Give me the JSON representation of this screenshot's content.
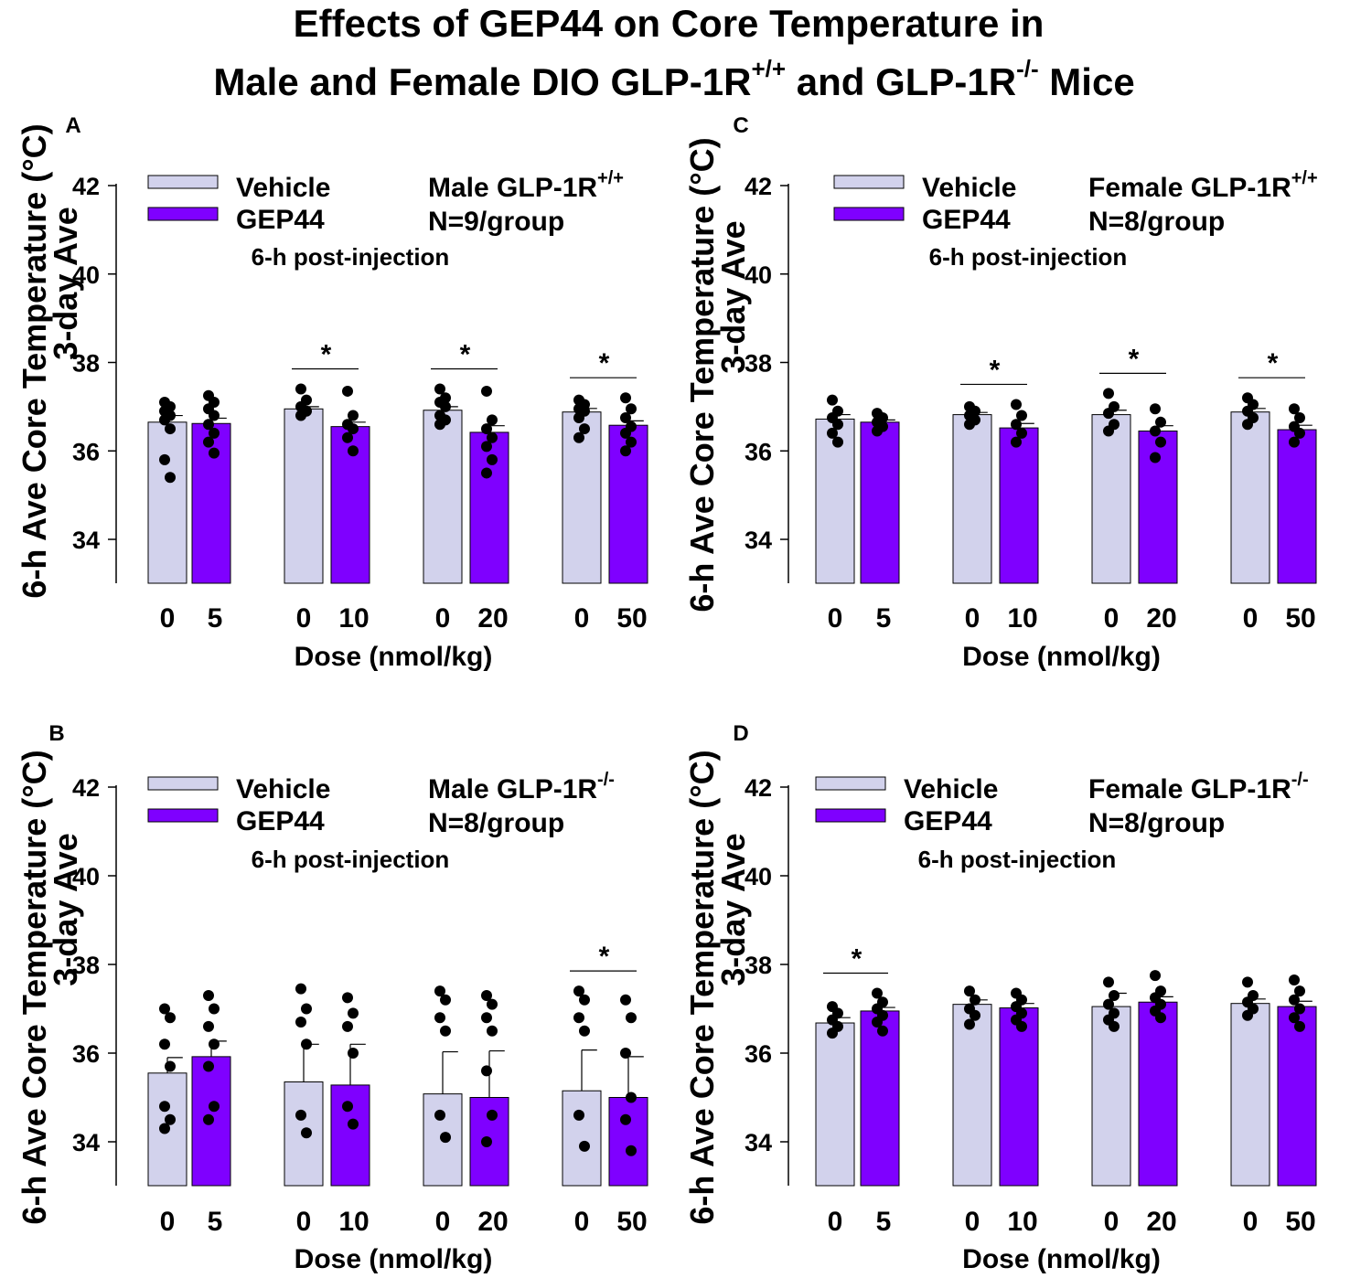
{
  "figure": {
    "title_line1": "Effects of GEP44 on Core Temperature in",
    "title_line2_a": "Male and Female DIO GLP-1R",
    "title_line2_sup1": "+/+",
    "title_line2_b": " and GLP-1R",
    "title_line2_sup2": "-/-",
    "title_line2_c": " Mice"
  },
  "colors": {
    "vehicle": "#d2d2ec",
    "gep44": "#7f00ff",
    "dot": "#000000"
  },
  "chart_data": [
    {
      "panel": "A",
      "type": "bar",
      "ylabel_1": "6-h Ave Core Temperature (°C)",
      "ylabel_2": "3-day Ave",
      "xlabel": "Dose (nmol/kg)",
      "ylim": [
        33,
        42
      ],
      "yticks": [
        34,
        36,
        38,
        40,
        42
      ],
      "legend": [
        "Vehicle",
        "GEP44"
      ],
      "group_base": "Male GLP-1R",
      "group_sup": "+/+",
      "n_label": "N=9/group",
      "note": "6-h post-injection",
      "pairs": [
        {
          "labels": [
            "0",
            "5"
          ],
          "means": [
            36.65,
            36.62
          ],
          "errors": [
            0.15,
            0.12
          ],
          "sig": false,
          "points": [
            [
              37.1,
              37.0,
              36.9,
              36.8,
              36.7,
              36.5,
              35.8,
              35.4
            ],
            [
              37.25,
              37.1,
              36.95,
              36.8,
              36.6,
              36.4,
              36.2,
              35.95
            ]
          ]
        },
        {
          "labels": [
            "0",
            "10"
          ],
          "means": [
            36.95,
            36.55
          ],
          "errors": [
            0.05,
            0.1
          ],
          "sig": true,
          "points": [
            [
              37.4,
              37.15,
              37.0,
              36.9,
              36.8
            ],
            [
              37.35,
              36.8,
              36.6,
              36.5,
              36.3,
              36.0
            ]
          ]
        },
        {
          "labels": [
            "0",
            "20"
          ],
          "means": [
            36.92,
            36.42
          ],
          "errors": [
            0.08,
            0.15
          ],
          "sig": true,
          "points": [
            [
              37.4,
              37.2,
              37.1,
              37.0,
              36.8,
              36.7,
              36.6
            ],
            [
              37.35,
              36.7,
              36.5,
              36.3,
              36.1,
              35.8,
              35.5
            ]
          ]
        },
        {
          "labels": [
            "0",
            "50"
          ],
          "means": [
            36.88,
            36.58
          ],
          "errors": [
            0.08,
            0.1
          ],
          "sig": true,
          "points": [
            [
              37.15,
              37.05,
              36.95,
              36.9,
              36.75,
              36.5,
              36.3
            ],
            [
              37.2,
              36.95,
              36.75,
              36.55,
              36.4,
              36.2,
              36.0
            ]
          ]
        }
      ]
    },
    {
      "panel": "C",
      "type": "bar",
      "ylabel_1": "6-h Ave Core Temperature (°C)",
      "ylabel_2": "3-day Ave",
      "xlabel": "Dose (nmol/kg)",
      "ylim": [
        33,
        42
      ],
      "yticks": [
        34,
        36,
        38,
        40,
        42
      ],
      "legend": [
        "Vehicle",
        "GEP44"
      ],
      "group_base": "Female GLP-1R",
      "group_sup": "+/+",
      "n_label": "N=8/group",
      "note": "6-h post-injection",
      "pairs": [
        {
          "labels": [
            "0",
            "5"
          ],
          "means": [
            36.72,
            36.65
          ],
          "errors": [
            0.1,
            0.05
          ],
          "sig": false,
          "points": [
            [
              37.15,
              36.9,
              36.75,
              36.6,
              36.4,
              36.2
            ],
            [
              36.85,
              36.75,
              36.65,
              36.55,
              36.45
            ]
          ]
        },
        {
          "labels": [
            "0",
            "10"
          ],
          "means": [
            36.82,
            36.52
          ],
          "errors": [
            0.05,
            0.1
          ],
          "sig": true,
          "points": [
            [
              37.0,
              36.9,
              36.8,
              36.7,
              36.6
            ],
            [
              37.05,
              36.8,
              36.6,
              36.4,
              36.2
            ]
          ]
        },
        {
          "labels": [
            "0",
            "20"
          ],
          "means": [
            36.82,
            36.45
          ],
          "errors": [
            0.1,
            0.12
          ],
          "sig": true,
          "points": [
            [
              37.3,
              37.0,
              36.85,
              36.6,
              36.45
            ],
            [
              36.95,
              36.65,
              36.45,
              36.2,
              35.85
            ]
          ]
        },
        {
          "labels": [
            "0",
            "50"
          ],
          "means": [
            36.88,
            36.48
          ],
          "errors": [
            0.08,
            0.1
          ],
          "sig": true,
          "points": [
            [
              37.2,
              37.05,
              36.9,
              36.75,
              36.6
            ],
            [
              36.95,
              36.75,
              36.55,
              36.4,
              36.2
            ]
          ]
        }
      ]
    },
    {
      "panel": "B",
      "type": "bar",
      "ylabel_1": "6-h Ave Core Temperature (°C)",
      "ylabel_2": "3-day Ave",
      "xlabel": "Dose (nmol/kg)",
      "ylim": [
        33,
        42
      ],
      "yticks": [
        34,
        36,
        38,
        40,
        42
      ],
      "legend": [
        "Vehicle",
        "GEP44"
      ],
      "group_base": "Male GLP-1R",
      "group_sup": "-/-",
      "n_label": "N=8/group",
      "note": "6-h post-injection",
      "pairs": [
        {
          "labels": [
            "0",
            "5"
          ],
          "means": [
            35.55,
            35.92
          ],
          "errors": [
            0.35,
            0.35
          ],
          "sig": false,
          "points": [
            [
              37.0,
              36.8,
              36.2,
              35.7,
              34.8,
              34.5,
              34.3
            ],
            [
              37.3,
              37.0,
              36.6,
              36.2,
              35.7,
              34.8,
              34.5
            ]
          ]
        },
        {
          "labels": [
            "0",
            "10"
          ],
          "means": [
            35.35,
            35.28
          ],
          "errors": [
            0.85,
            0.92
          ],
          "sig": false,
          "points": [
            [
              37.45,
              37.0,
              36.7,
              36.2,
              34.6,
              34.2
            ],
            [
              37.25,
              36.9,
              36.6,
              36.0,
              34.8,
              34.4
            ]
          ]
        },
        {
          "labels": [
            "0",
            "20"
          ],
          "means": [
            35.08,
            35.0
          ],
          "errors": [
            0.95,
            1.05
          ],
          "sig": false,
          "points": [
            [
              37.4,
              37.2,
              36.8,
              36.5,
              34.6,
              34.1
            ],
            [
              37.3,
              37.1,
              36.8,
              36.5,
              35.6,
              34.6,
              34.0
            ]
          ]
        },
        {
          "labels": [
            "0",
            "50"
          ],
          "means": [
            35.15,
            35.0
          ],
          "errors": [
            0.92,
            0.92
          ],
          "sig": true,
          "points": [
            [
              37.4,
              37.2,
              36.8,
              36.5,
              34.6,
              33.9
            ],
            [
              37.2,
              36.8,
              36.0,
              35.0,
              34.5,
              33.8
            ]
          ]
        }
      ]
    },
    {
      "panel": "D",
      "type": "bar",
      "ylabel_1": "6-h Ave Core Temperature (°C)",
      "ylabel_2": "3-day Ave",
      "xlabel": "Dose (nmol/kg)",
      "ylim": [
        33,
        42
      ],
      "yticks": [
        34,
        36,
        38,
        40,
        42
      ],
      "legend": [
        "Vehicle",
        "GEP44"
      ],
      "group_base": "Female GLP-1R",
      "group_sup": "-/-",
      "n_label": "N=8/group",
      "note": "6-h post-injection",
      "pairs": [
        {
          "labels": [
            "0",
            "5"
          ],
          "means": [
            36.68,
            36.95
          ],
          "errors": [
            0.12,
            0.08
          ],
          "sig": true,
          "points": [
            [
              37.05,
              36.9,
              36.75,
              36.6,
              36.45
            ],
            [
              37.35,
              37.15,
              37.0,
              36.85,
              36.7,
              36.5
            ]
          ]
        },
        {
          "labels": [
            "0",
            "10"
          ],
          "means": [
            37.1,
            37.02
          ],
          "errors": [
            0.1,
            0.1
          ],
          "sig": false,
          "points": [
            [
              37.4,
              37.2,
              37.0,
              36.85,
              36.65
            ],
            [
              37.35,
              37.2,
              37.05,
              36.9,
              36.75,
              36.6
            ]
          ]
        },
        {
          "labels": [
            "0",
            "20"
          ],
          "means": [
            37.05,
            37.15
          ],
          "errors": [
            0.3,
            0.12
          ],
          "sig": false,
          "points": [
            [
              37.6,
              37.3,
              37.1,
              36.9,
              36.75,
              36.6
            ],
            [
              37.75,
              37.4,
              37.25,
              37.1,
              36.95,
              36.8
            ]
          ]
        },
        {
          "labels": [
            "0",
            "50"
          ],
          "means": [
            37.12,
            37.05
          ],
          "errors": [
            0.1,
            0.12
          ],
          "sig": false,
          "points": [
            [
              37.6,
              37.3,
              37.15,
              37.0,
              36.85
            ],
            [
              37.65,
              37.4,
              37.2,
              37.0,
              36.8,
              36.6
            ]
          ]
        }
      ]
    }
  ]
}
